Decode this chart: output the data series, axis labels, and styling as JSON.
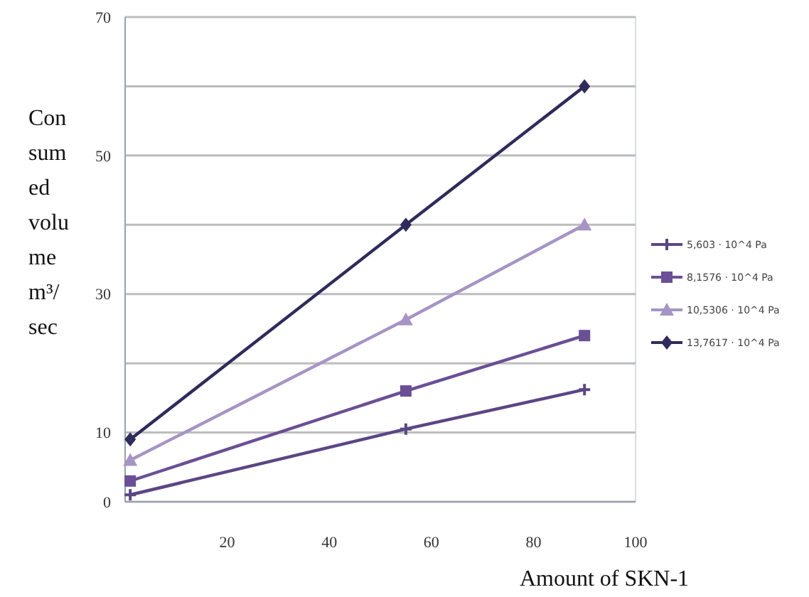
{
  "chart_data": {
    "type": "line",
    "xlabel": "Amount of SKN-1",
    "ylabel": "Consumed volume m³/sec",
    "xlim": [
      0,
      100
    ],
    "xticks": [
      20,
      40,
      60,
      80,
      100
    ],
    "ylim": [
      0,
      70
    ],
    "yticks": [
      0,
      10,
      {
        "value": 20,
        "label": null
      },
      30,
      {
        "value": 40,
        "label": null
      },
      50,
      {
        "value": 60,
        "label": null
      },
      70
    ],
    "grid": "y",
    "legend": "right",
    "series": [
      {
        "name": "5,603 · 10^4 Pa",
        "color": "#5b4684",
        "marker": "cross",
        "x": [
          1,
          55,
          90
        ],
        "values": [
          1,
          10.5,
          16.2
        ]
      },
      {
        "name": "8,1576 · 10^4 Pa",
        "color": "#6a4f95",
        "marker": "square",
        "x": [
          1,
          55,
          90
        ],
        "values": [
          3,
          16,
          24
        ]
      },
      {
        "name": "10,5306 · 10^4 Pa",
        "color": "#a594c4",
        "marker": "triangle",
        "x": [
          1,
          55,
          90
        ],
        "values": [
          6,
          26.3,
          40
        ]
      },
      {
        "name": "13,7617 · 10^4 Pa",
        "color": "#2f2b5c",
        "marker": "diamond",
        "x": [
          1,
          55,
          90
        ],
        "values": [
          9,
          40,
          60
        ]
      }
    ]
  }
}
